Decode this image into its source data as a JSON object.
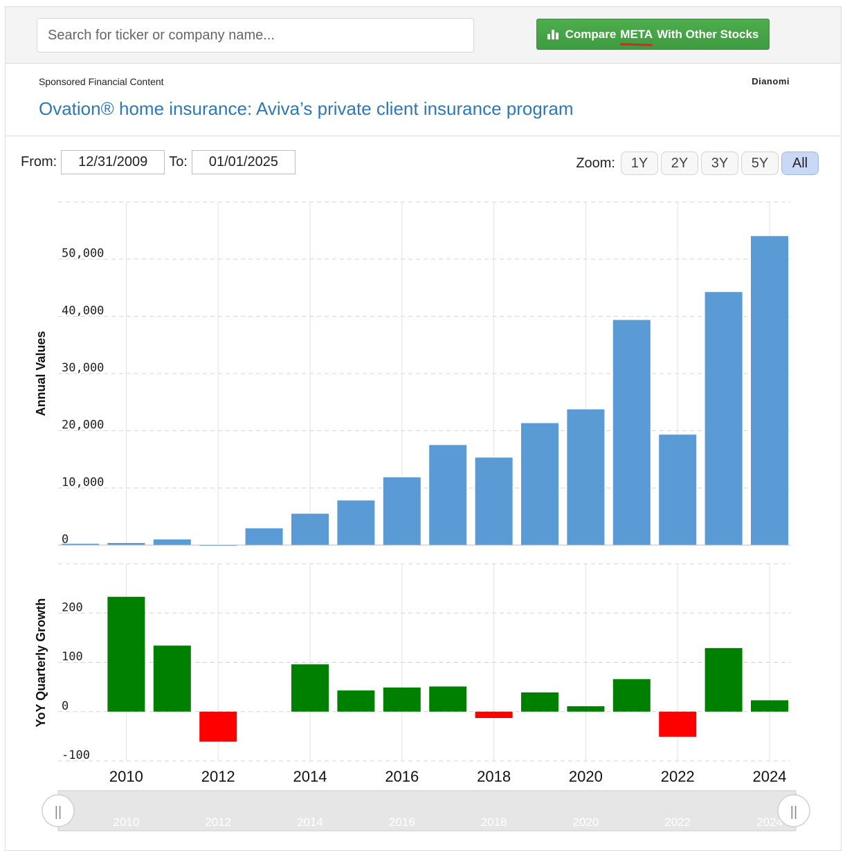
{
  "header": {
    "search_placeholder": "Search for ticker or company name...",
    "compare_prefix": "Compare",
    "compare_ticker": "META",
    "compare_suffix": "With Other Stocks"
  },
  "sponsor": {
    "label": "Sponsored Financial Content",
    "brand": "Dianomi",
    "headline": "Ovation® home insurance: Aviva’s private client insurance program"
  },
  "range": {
    "from_label": "From:",
    "from_value": "12/31/2009",
    "to_label": "To:",
    "to_value": "01/01/2025"
  },
  "zoom": {
    "label": "Zoom:",
    "options": [
      "1Y",
      "2Y",
      "3Y",
      "5Y",
      "All"
    ],
    "active": "All"
  },
  "colors": {
    "annual_bar": "#5b9bd5",
    "growth_positive": "#008000",
    "growth_negative": "#ff0000"
  },
  "chart_data": [
    {
      "type": "bar",
      "ylabel": "Annual Values",
      "ylim": [
        0,
        60000
      ],
      "yticks": [
        "0",
        "10,000",
        "20,000",
        "30,000",
        "40,000",
        "50,000"
      ],
      "x": [
        2009,
        2010,
        2011,
        2012,
        2013,
        2014,
        2015,
        2016,
        2017,
        2018,
        2019,
        2020,
        2021,
        2022,
        2023,
        2024
      ],
      "values": [
        229,
        372,
        1000,
        53,
        2940,
        5490,
        7810,
        11850,
        17500,
        15310,
        21330,
        23740,
        39370,
        19320,
        44250,
        54040
      ],
      "grid": true
    },
    {
      "type": "bar",
      "ylabel": "YoY Quarterly Growth",
      "ylim": [
        -100,
        300
      ],
      "yticks": [
        "-100",
        "0",
        "100",
        "200"
      ],
      "x": [
        2009,
        2010,
        2011,
        2012,
        2013,
        2014,
        2015,
        2016,
        2017,
        2018,
        2019,
        2020,
        2021,
        2022,
        2023,
        2024
      ],
      "values": [
        0,
        233,
        134,
        -61,
        0,
        96,
        43,
        49,
        51,
        -13,
        39,
        11,
        66,
        -51,
        129,
        23
      ],
      "xticks": [
        "2010",
        "2012",
        "2014",
        "2016",
        "2018",
        "2020",
        "2022",
        "2024"
      ],
      "grid": true
    }
  ],
  "navigator": {
    "labels": [
      "2010",
      "2012",
      "2014",
      "2016",
      "2018",
      "2020",
      "2022",
      "2024"
    ],
    "handle_glyph": "||"
  }
}
